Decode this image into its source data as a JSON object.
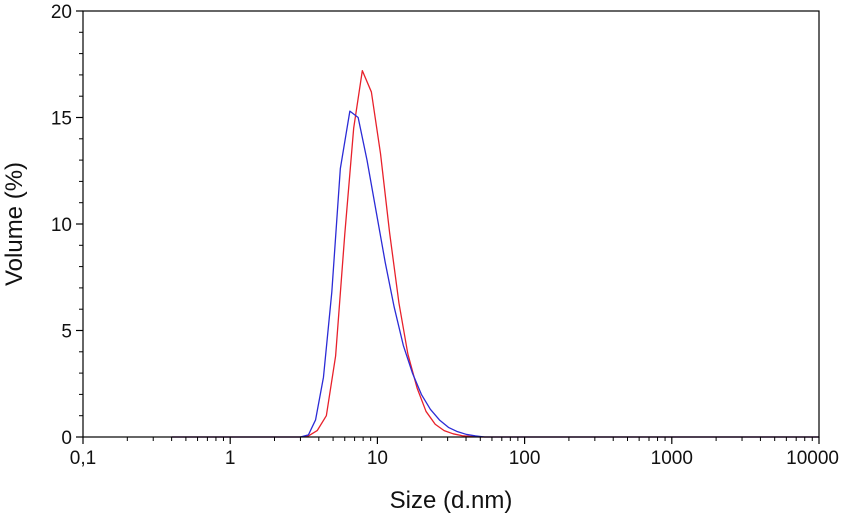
{
  "chart_data": {
    "type": "line",
    "xlabel": "Size (d.nm)",
    "ylabel": "Volume (%)",
    "xscale": "log",
    "xlim": [
      0.1,
      10000
    ],
    "ylim": [
      0,
      20
    ],
    "grid": false,
    "legend": "none",
    "x_ticks": [
      {
        "value": 0.1,
        "label": "0,1"
      },
      {
        "value": 1,
        "label": "1"
      },
      {
        "value": 10,
        "label": "10"
      },
      {
        "value": 100,
        "label": "100"
      },
      {
        "value": 1000,
        "label": "1000"
      },
      {
        "value": 10000,
        "label": "10000"
      }
    ],
    "y_ticks": [
      {
        "value": 0,
        "label": "0"
      },
      {
        "value": 5,
        "label": "5"
      },
      {
        "value": 10,
        "label": "10"
      },
      {
        "value": 15,
        "label": "15"
      },
      {
        "value": 20,
        "label": "20"
      }
    ],
    "series": [
      {
        "color": "#e8212b",
        "points": [
          [
            0.4,
            0
          ],
          [
            1,
            0
          ],
          [
            3.0,
            0
          ],
          [
            3.4,
            0.05
          ],
          [
            3.9,
            0.3
          ],
          [
            4.5,
            1.0
          ],
          [
            5.2,
            3.8
          ],
          [
            6.0,
            9.5
          ],
          [
            6.9,
            14.5
          ],
          [
            7.9,
            17.2
          ],
          [
            9.1,
            16.2
          ],
          [
            10.5,
            13.3
          ],
          [
            12.1,
            9.6
          ],
          [
            14.0,
            6.3
          ],
          [
            16.1,
            3.9
          ],
          [
            18.6,
            2.3
          ],
          [
            21.4,
            1.2
          ],
          [
            24.7,
            0.6
          ],
          [
            28.4,
            0.3
          ],
          [
            32.7,
            0.15
          ],
          [
            37.8,
            0.06
          ],
          [
            43.5,
            0.02
          ],
          [
            50,
            0
          ],
          [
            100,
            0
          ],
          [
            1000,
            0
          ],
          [
            10000,
            0
          ]
        ]
      },
      {
        "color": "#2b2bd6",
        "points": [
          [
            0.4,
            0
          ],
          [
            1,
            0
          ],
          [
            3.0,
            0
          ],
          [
            3.4,
            0.1
          ],
          [
            3.8,
            0.8
          ],
          [
            4.3,
            2.8
          ],
          [
            4.9,
            6.8
          ],
          [
            5.6,
            12.6
          ],
          [
            6.5,
            15.3
          ],
          [
            7.4,
            15.0
          ],
          [
            8.5,
            13.0
          ],
          [
            9.8,
            10.6
          ],
          [
            11.3,
            8.2
          ],
          [
            13.0,
            6.1
          ],
          [
            15.0,
            4.3
          ],
          [
            17.3,
            3.0
          ],
          [
            19.9,
            2.0
          ],
          [
            22.9,
            1.3
          ],
          [
            26.4,
            0.8
          ],
          [
            30.4,
            0.45
          ],
          [
            35.0,
            0.25
          ],
          [
            40.3,
            0.12
          ],
          [
            46.4,
            0.05
          ],
          [
            53.5,
            0
          ],
          [
            100,
            0
          ],
          [
            1000,
            0
          ],
          [
            10000,
            0
          ]
        ]
      }
    ]
  }
}
